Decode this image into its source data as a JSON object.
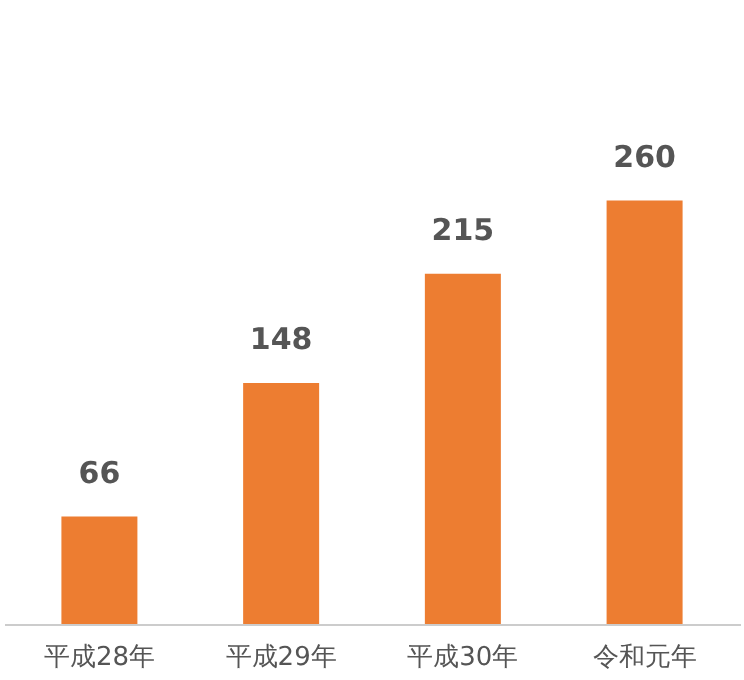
{
  "chart_data": {
    "type": "bar",
    "categories": [
      "平成28年",
      "平成29年",
      "平成30年",
      "令和元年"
    ],
    "values": [
      66,
      148,
      215,
      260
    ],
    "color": "#ed7d31",
    "data_labels": true,
    "grid": false
  }
}
